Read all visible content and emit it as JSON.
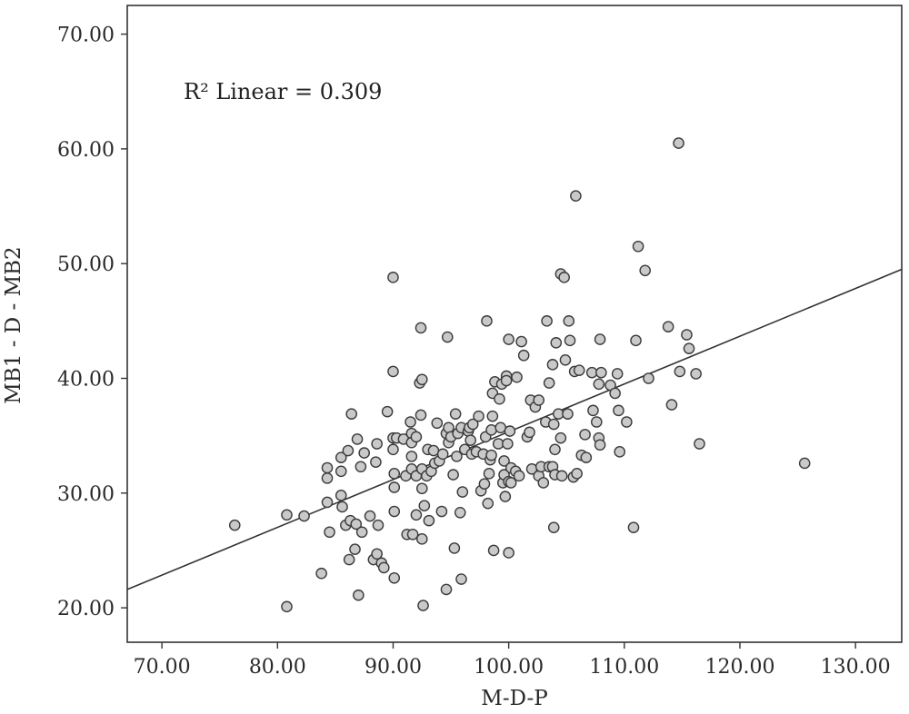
{
  "chart_data": {
    "type": "scatter",
    "xlabel": "M-D-P",
    "ylabel": "MB1 - D - MB2",
    "xlim": [
      67,
      134
    ],
    "ylim": [
      17,
      72.5
    ],
    "x_ticks": [
      "70.00",
      "80.00",
      "90.00",
      "100.00",
      "110.00",
      "120.00",
      "130.00"
    ],
    "y_ticks": [
      "20.00",
      "30.00",
      "40.00",
      "50.00",
      "60.00",
      "70.00"
    ],
    "x_tick_values": [
      70,
      80,
      90,
      100,
      110,
      120,
      130
    ],
    "y_tick_values": [
      20,
      30,
      40,
      50,
      60,
      70
    ],
    "annotation": "R² Linear = 0.309",
    "fit_line": {
      "x": [
        67,
        134
      ],
      "y": [
        21.6,
        49.5
      ]
    },
    "grid": false,
    "points": [
      [
        76.3,
        27.2
      ],
      [
        80.8,
        28.1
      ],
      [
        80.8,
        20.1
      ],
      [
        82.3,
        28.0
      ],
      [
        83.8,
        23.0
      ],
      [
        84.3,
        32.2
      ],
      [
        84.3,
        31.3
      ],
      [
        84.3,
        29.2
      ],
      [
        84.5,
        26.6
      ],
      [
        85.5,
        33.1
      ],
      [
        85.5,
        31.9
      ],
      [
        85.5,
        29.8
      ],
      [
        85.6,
        28.8
      ],
      [
        85.9,
        27.2
      ],
      [
        86.1,
        33.7
      ],
      [
        86.2,
        24.2
      ],
      [
        86.3,
        27.6
      ],
      [
        86.4,
        36.9
      ],
      [
        86.7,
        25.1
      ],
      [
        86.8,
        27.3
      ],
      [
        86.9,
        34.7
      ],
      [
        87.0,
        21.1
      ],
      [
        87.2,
        32.3
      ],
      [
        87.3,
        26.6
      ],
      [
        87.5,
        33.5
      ],
      [
        88.0,
        28.0
      ],
      [
        88.3,
        24.2
      ],
      [
        88.5,
        32.7
      ],
      [
        88.6,
        34.3
      ],
      [
        88.6,
        24.7
      ],
      [
        88.7,
        27.2
      ],
      [
        89.0,
        23.9
      ],
      [
        89.2,
        23.5
      ],
      [
        89.5,
        37.1
      ],
      [
        90.0,
        48.8
      ],
      [
        90.0,
        40.6
      ],
      [
        90.0,
        34.8
      ],
      [
        90.0,
        33.8
      ],
      [
        90.1,
        31.7
      ],
      [
        90.1,
        30.5
      ],
      [
        90.1,
        28.4
      ],
      [
        90.1,
        22.6
      ],
      [
        90.3,
        34.8
      ],
      [
        90.9,
        34.7
      ],
      [
        91.1,
        31.5
      ],
      [
        91.2,
        26.4
      ],
      [
        91.5,
        36.2
      ],
      [
        91.6,
        35.2
      ],
      [
        91.6,
        34.4
      ],
      [
        91.6,
        33.2
      ],
      [
        91.6,
        32.1
      ],
      [
        91.7,
        26.4
      ],
      [
        92.0,
        34.9
      ],
      [
        92.0,
        31.5
      ],
      [
        92.0,
        28.1
      ],
      [
        92.3,
        39.6
      ],
      [
        92.4,
        44.4
      ],
      [
        92.4,
        36.8
      ],
      [
        92.5,
        39.9
      ],
      [
        92.5,
        32.1
      ],
      [
        92.5,
        30.4
      ],
      [
        92.5,
        26.0
      ],
      [
        92.6,
        20.2
      ],
      [
        92.7,
        28.9
      ],
      [
        92.9,
        31.5
      ],
      [
        93.0,
        33.8
      ],
      [
        93.1,
        27.6
      ],
      [
        93.3,
        31.9
      ],
      [
        93.5,
        33.7
      ],
      [
        93.6,
        32.6
      ],
      [
        93.8,
        36.1
      ],
      [
        94.0,
        32.8
      ],
      [
        94.2,
        28.4
      ],
      [
        94.3,
        33.4
      ],
      [
        94.6,
        35.2
      ],
      [
        94.6,
        21.6
      ],
      [
        94.7,
        43.6
      ],
      [
        94.8,
        35.7
      ],
      [
        94.8,
        34.4
      ],
      [
        95.0,
        34.9
      ],
      [
        95.2,
        31.6
      ],
      [
        95.3,
        25.2
      ],
      [
        95.4,
        36.9
      ],
      [
        95.5,
        33.2
      ],
      [
        95.6,
        35.2
      ],
      [
        95.8,
        28.3
      ],
      [
        95.9,
        35.7
      ],
      [
        95.9,
        22.5
      ],
      [
        96.0,
        30.1
      ],
      [
        96.2,
        33.8
      ],
      [
        96.5,
        35.4
      ],
      [
        96.6,
        35.7
      ],
      [
        96.7,
        34.6
      ],
      [
        96.8,
        33.4
      ],
      [
        96.9,
        36.0
      ],
      [
        97.2,
        33.6
      ],
      [
        97.4,
        36.7
      ],
      [
        97.6,
        30.2
      ],
      [
        97.8,
        33.4
      ],
      [
        97.9,
        30.8
      ],
      [
        98.0,
        34.9
      ],
      [
        98.1,
        45.0
      ],
      [
        98.2,
        29.1
      ],
      [
        98.3,
        31.7
      ],
      [
        98.4,
        32.9
      ],
      [
        98.5,
        35.5
      ],
      [
        98.5,
        33.3
      ],
      [
        98.6,
        36.7
      ],
      [
        98.6,
        38.7
      ],
      [
        98.7,
        25.0
      ],
      [
        98.8,
        39.7
      ],
      [
        99.1,
        34.3
      ],
      [
        99.2,
        38.2
      ],
      [
        99.3,
        35.7
      ],
      [
        99.4,
        39.5
      ],
      [
        99.5,
        30.9
      ],
      [
        99.6,
        31.6
      ],
      [
        99.6,
        32.8
      ],
      [
        99.7,
        29.7
      ],
      [
        99.8,
        40.2
      ],
      [
        99.8,
        39.8
      ],
      [
        99.9,
        34.3
      ],
      [
        100.0,
        31.0
      ],
      [
        100.0,
        24.8
      ],
      [
        100.0,
        43.4
      ],
      [
        100.1,
        35.4
      ],
      [
        100.2,
        32.2
      ],
      [
        100.2,
        30.9
      ],
      [
        100.6,
        31.9
      ],
      [
        100.7,
        40.1
      ],
      [
        100.9,
        31.5
      ],
      [
        101.1,
        43.2
      ],
      [
        101.3,
        42.0
      ],
      [
        101.6,
        34.9
      ],
      [
        101.8,
        35.3
      ],
      [
        101.9,
        38.1
      ],
      [
        102.0,
        32.1
      ],
      [
        102.3,
        37.5
      ],
      [
        102.6,
        31.5
      ],
      [
        102.6,
        38.1
      ],
      [
        102.8,
        32.3
      ],
      [
        103.0,
        30.9
      ],
      [
        103.2,
        36.2
      ],
      [
        103.3,
        45.0
      ],
      [
        103.5,
        32.3
      ],
      [
        103.5,
        39.6
      ],
      [
        103.8,
        41.2
      ],
      [
        103.8,
        32.3
      ],
      [
        103.9,
        27.0
      ],
      [
        103.9,
        36.0
      ],
      [
        104.0,
        31.6
      ],
      [
        104.0,
        33.8
      ],
      [
        104.1,
        43.1
      ],
      [
        104.3,
        36.9
      ],
      [
        104.5,
        49.1
      ],
      [
        104.5,
        34.8
      ],
      [
        104.6,
        31.5
      ],
      [
        104.8,
        48.8
      ],
      [
        104.9,
        41.6
      ],
      [
        105.1,
        36.9
      ],
      [
        105.2,
        45.0
      ],
      [
        105.3,
        43.3
      ],
      [
        105.6,
        31.4
      ],
      [
        105.7,
        40.6
      ],
      [
        105.8,
        55.9
      ],
      [
        105.9,
        31.7
      ],
      [
        106.1,
        40.7
      ],
      [
        106.3,
        33.3
      ],
      [
        106.6,
        35.1
      ],
      [
        106.7,
        33.1
      ],
      [
        107.2,
        40.5
      ],
      [
        107.3,
        37.2
      ],
      [
        107.6,
        36.2
      ],
      [
        107.8,
        34.8
      ],
      [
        107.8,
        39.5
      ],
      [
        107.9,
        34.2
      ],
      [
        107.9,
        43.4
      ],
      [
        108.0,
        40.5
      ],
      [
        108.8,
        39.4
      ],
      [
        109.2,
        38.7
      ],
      [
        109.4,
        40.4
      ],
      [
        109.5,
        37.2
      ],
      [
        109.6,
        33.6
      ],
      [
        110.2,
        36.2
      ],
      [
        110.8,
        27.0
      ],
      [
        111.0,
        43.3
      ],
      [
        111.2,
        51.5
      ],
      [
        111.8,
        49.4
      ],
      [
        112.1,
        40.0
      ],
      [
        113.8,
        44.5
      ],
      [
        114.1,
        37.7
      ],
      [
        114.7,
        60.5
      ],
      [
        114.8,
        40.6
      ],
      [
        115.4,
        43.8
      ],
      [
        115.6,
        42.6
      ],
      [
        116.2,
        40.4
      ],
      [
        116.5,
        34.3
      ],
      [
        125.6,
        32.6
      ]
    ]
  }
}
